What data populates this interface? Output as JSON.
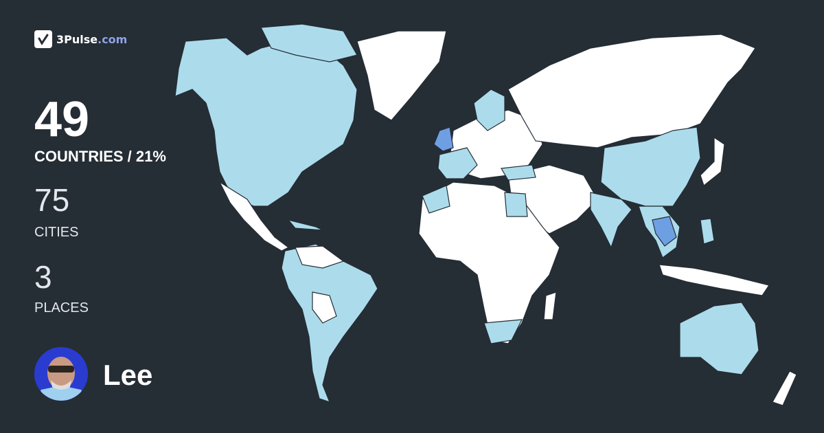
{
  "brand": {
    "name": "3Pulse",
    "tld": ".com",
    "icon": "pulse-check-icon"
  },
  "stats": {
    "countries": {
      "value": "49",
      "label": "COUNTRIES / 21%"
    },
    "cities": {
      "value": "75",
      "label": "CITIES"
    },
    "places": {
      "value": "3",
      "label": "PLACES"
    }
  },
  "user": {
    "name": "Lee"
  },
  "colors": {
    "background": "#252d35",
    "unvisited": "#ffffff",
    "visited": "#acdcec",
    "highlight": "#6f9fe3",
    "brand_accent": "#8ea3e8"
  }
}
